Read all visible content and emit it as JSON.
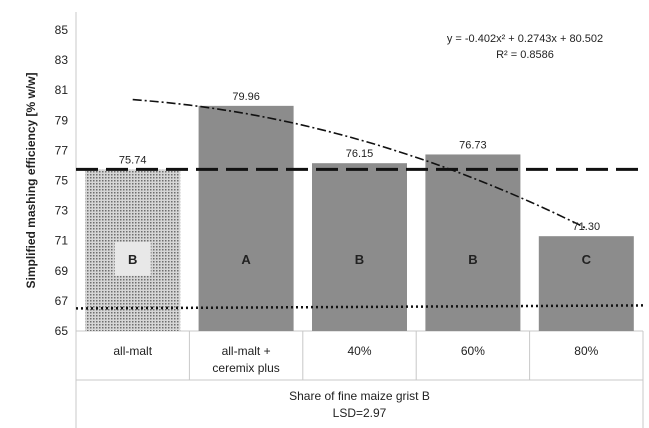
{
  "chart_data": {
    "type": "bar",
    "ylabel": "Simplified mashing efficiency [% w/w]",
    "xlabel": "Share of fine maize grist B",
    "xlabel_note": "LSD=2.97",
    "ylim": [
      65,
      85
    ],
    "yticks": [
      65,
      67,
      69,
      71,
      73,
      75,
      77,
      79,
      81,
      83,
      85
    ],
    "categories": [
      "all-malt",
      "all-malt + ceremix plus",
      "40%",
      "60%",
      "80%"
    ],
    "category_lines": [
      [
        "all-malt"
      ],
      [
        "all-malt +",
        "ceremix plus"
      ],
      [
        "40%"
      ],
      [
        "60%"
      ],
      [
        "80%"
      ]
    ],
    "values": [
      75.74,
      79.96,
      76.15,
      76.73,
      71.3
    ],
    "value_labels": [
      "75.74",
      "79.96",
      "76.15",
      "76.73",
      "71.30"
    ],
    "group_letters": [
      "B",
      "A",
      "B",
      "B",
      "C"
    ],
    "bar_styles": [
      "dotted",
      "solid",
      "solid",
      "solid",
      "solid"
    ],
    "bar_color": "#8c8c8c",
    "reference_lines": [
      {
        "style": "dashed",
        "y": 75.74
      },
      {
        "style": "dotted",
        "y_start": 66.5,
        "y_end": 66.7
      }
    ],
    "trendline": {
      "style": "dash-dot",
      "equation": "y = -0.402x² + 0.2743x + 80.502",
      "r_squared": "R² = 0.8586",
      "a": -0.402,
      "b": 0.2743,
      "c": 80.502,
      "x_range": [
        1,
        5
      ]
    },
    "grid": false
  }
}
